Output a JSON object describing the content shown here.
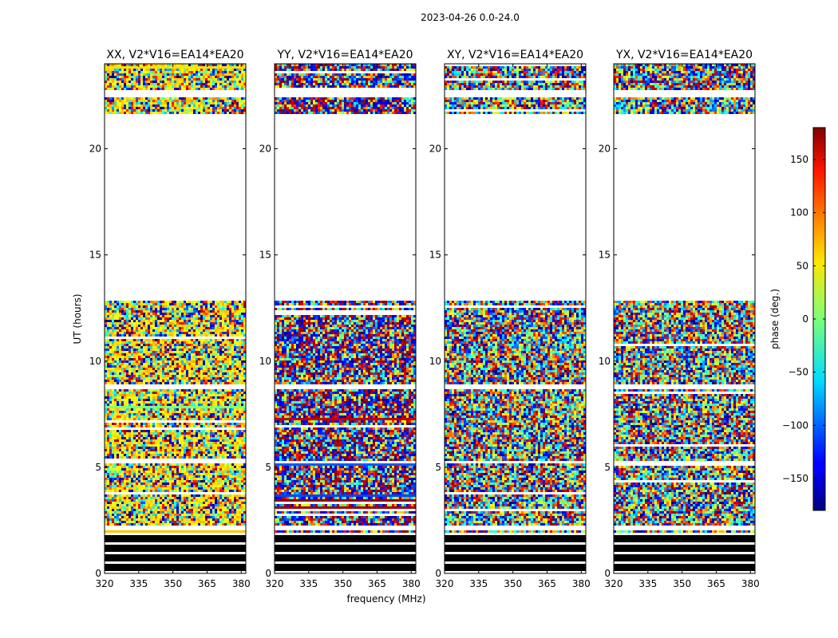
{
  "chart_data": {
    "type": "heatmap",
    "suptitle": "2023-04-26 0.0-24.0",
    "xlabel": "frequency (MHz)",
    "ylabel": "UT (hours)",
    "xlim": [
      320,
      382
    ],
    "ylim": [
      0,
      24
    ],
    "xticks": [
      320,
      335,
      350,
      365,
      380
    ],
    "yticks": [
      0,
      5,
      10,
      15,
      20
    ],
    "panels": [
      {
        "title": "XX, V2*V16=EA14*EA20",
        "bias": "yellow"
      },
      {
        "title": "YY, V2*V16=EA14*EA20",
        "bias": "blue-red"
      },
      {
        "title": "XY, V2*V16=EA14*EA20",
        "bias": "none"
      },
      {
        "title": "YX, V2*V16=EA14*EA20",
        "bias": "none"
      }
    ],
    "blank_hours": [
      [
        12.8,
        21.6
      ],
      [
        22.45,
        22.75
      ],
      [
        8.65,
        8.85
      ],
      [
        5.15,
        5.3
      ],
      [
        2.05,
        2.3
      ]
    ],
    "black_hours": [
      [
        0.0,
        1.9
      ]
    ],
    "colorbar": {
      "label": "phase (deg.)",
      "range": [
        -180,
        180
      ],
      "ticks": [
        -150,
        -100,
        -50,
        0,
        50,
        100,
        150
      ],
      "tick_labels": [
        "−150",
        "−100",
        "−50",
        "0",
        "50",
        "100",
        "150"
      ],
      "colormap": "jet"
    }
  }
}
